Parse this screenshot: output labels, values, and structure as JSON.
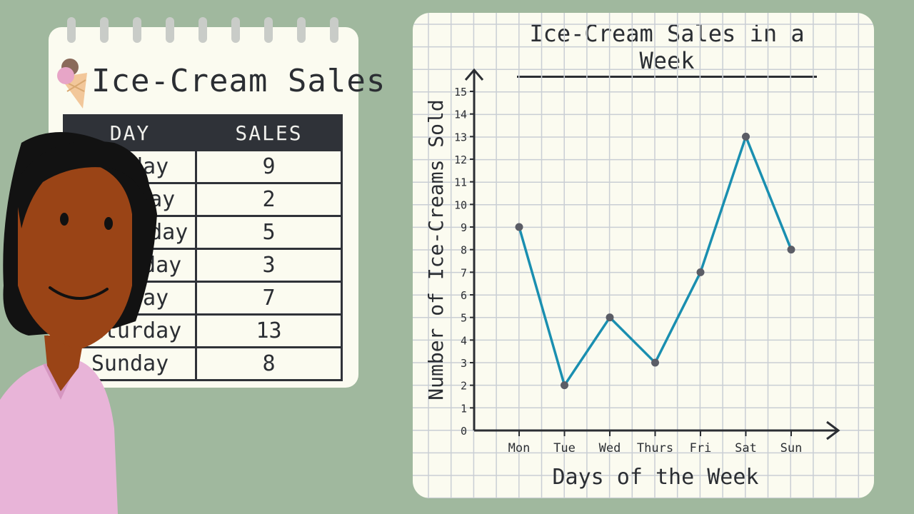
{
  "notepad": {
    "title": "Ice-Cream Sales",
    "headers": {
      "day": "DAY",
      "sales": "SALES"
    },
    "rows": [
      {
        "day": "Monday",
        "sales": "9"
      },
      {
        "day": "Tuesday",
        "sales": "2"
      },
      {
        "day": "Wednesday",
        "sales": "5"
      },
      {
        "day": "Thursday",
        "sales": "3"
      },
      {
        "day": "Friday",
        "sales": "7"
      },
      {
        "day": "Saturday",
        "sales": "13"
      },
      {
        "day": "Sunday",
        "sales": "8"
      }
    ]
  },
  "chart_data": {
    "type": "line",
    "title": "Ice-Cream Sales in a Week",
    "xlabel": "Days of the Week",
    "ylabel": "Number of Ice-Creams Sold",
    "categories": [
      "Mon",
      "Tue",
      "Wed",
      "Thurs",
      "Fri",
      "Sat",
      "Sun"
    ],
    "values": [
      9,
      2,
      5,
      3,
      7,
      13,
      8
    ],
    "ylim": [
      0,
      15
    ],
    "yticks": [
      0,
      1,
      2,
      3,
      4,
      5,
      6,
      7,
      8,
      9,
      10,
      11,
      12,
      13,
      14,
      15
    ],
    "grid": true,
    "line_color": "#1a8fb0",
    "marker_color": "#5b5d66"
  },
  "colors": {
    "background": "#a0b89e",
    "paper": "#fbfbf0",
    "table_header": "#2f3238",
    "skin": "#9a4416",
    "hair": "#121212",
    "shirt": "#e8b4d8"
  }
}
